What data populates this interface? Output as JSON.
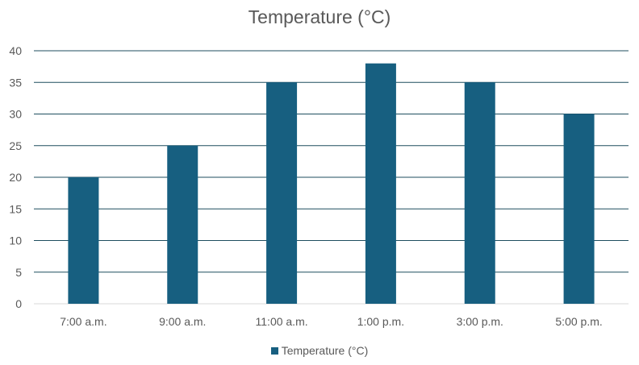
{
  "chart_data": {
    "type": "bar",
    "title": "Temperature (°C)",
    "xlabel": "",
    "ylabel": "",
    "categories": [
      "7:00 a.m.",
      "9:00 a.m.",
      "11:00 a.m.",
      "1:00 p.m.",
      "3:00 p.m.",
      "5:00 p.m."
    ],
    "series": [
      {
        "name": "Temperature (°C)",
        "values": [
          20,
          25,
          35,
          38,
          35,
          30
        ],
        "color": "#175f80"
      }
    ],
    "ylim": [
      0,
      40
    ],
    "yticks": [
      0,
      5,
      10,
      15,
      20,
      25,
      30,
      35,
      40
    ],
    "grid": true,
    "gridline_color": "#1f4e5f",
    "legend_position": "bottom"
  }
}
